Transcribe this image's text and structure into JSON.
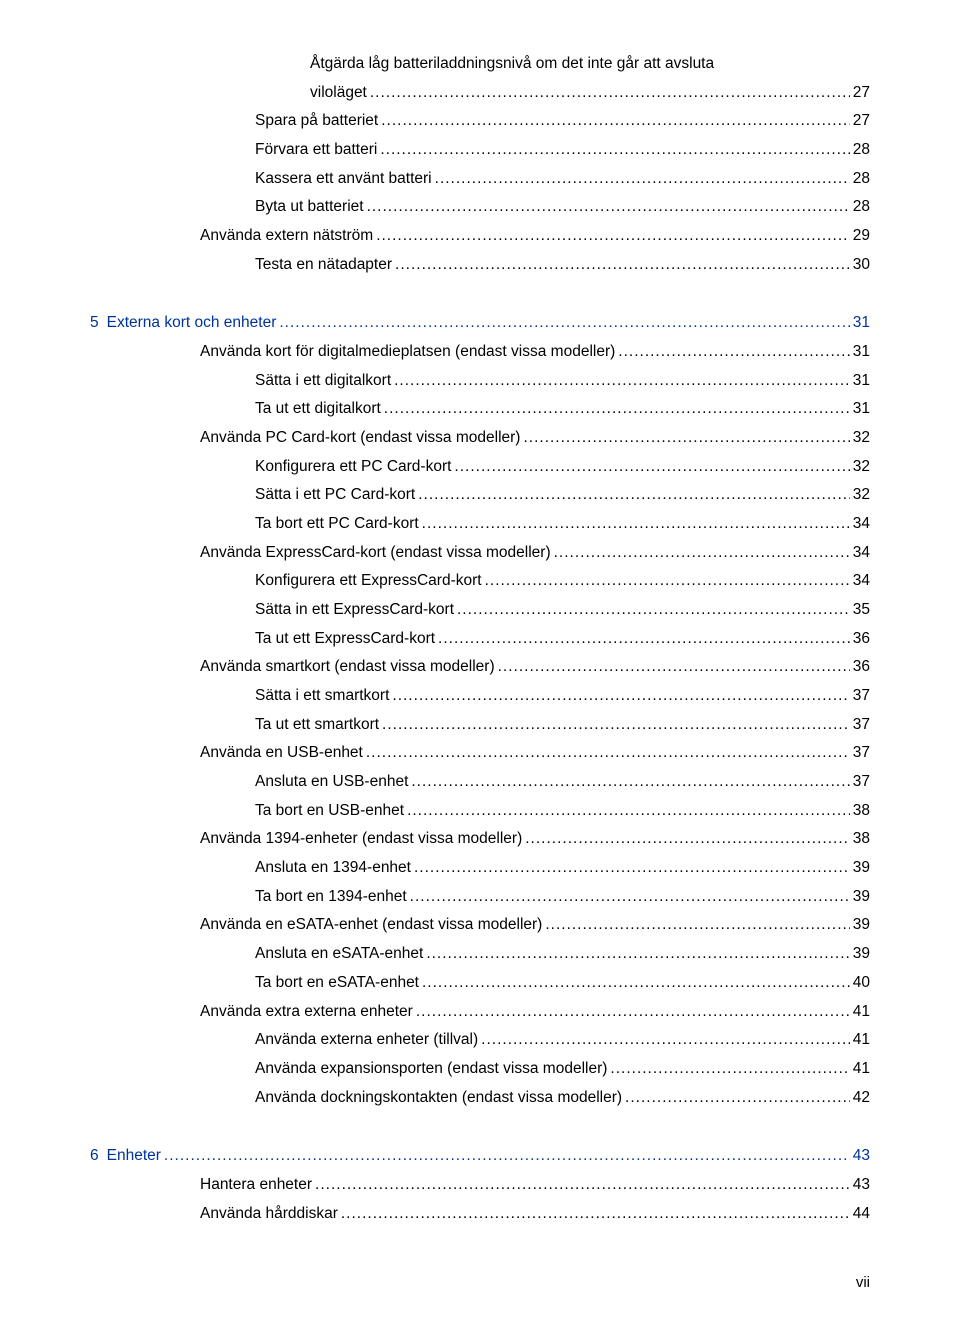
{
  "colors": {
    "text": "#000000",
    "accent": "#003399",
    "background": "#ffffff"
  },
  "page_number_label": "vii",
  "toc": [
    {
      "indent": 4,
      "title": "Åtgärda låg batteriladdningsnivå om det inte går att avsluta viloläget",
      "page": "27",
      "accent": false,
      "wrap": true
    },
    {
      "indent": 3,
      "title": "Spara på batteriet",
      "page": "27",
      "accent": false
    },
    {
      "indent": 3,
      "title": "Förvara ett batteri",
      "page": "28",
      "accent": false
    },
    {
      "indent": 3,
      "title": "Kassera ett använt batteri",
      "page": "28",
      "accent": false
    },
    {
      "indent": 3,
      "title": "Byta ut batteriet",
      "page": "28",
      "accent": false
    },
    {
      "indent": 2,
      "title": "Använda extern nätström",
      "page": "29",
      "accent": false
    },
    {
      "indent": 3,
      "title": "Testa en nätadapter",
      "page": "30",
      "accent": false
    },
    {
      "spacer": true
    },
    {
      "indent": 0,
      "chapter": "5",
      "title": "Externa kort och enheter",
      "page": "31",
      "accent": true
    },
    {
      "indent": 2,
      "title": "Använda kort för digitalmedieplatsen (endast vissa modeller)",
      "page": "31",
      "accent": false
    },
    {
      "indent": 3,
      "title": "Sätta i ett digitalkort",
      "page": "31",
      "accent": false
    },
    {
      "indent": 3,
      "title": "Ta ut ett digitalkort",
      "page": "31",
      "accent": false
    },
    {
      "indent": 2,
      "title": "Använda PC Card-kort (endast vissa modeller)",
      "page": "32",
      "accent": false
    },
    {
      "indent": 3,
      "title": "Konfigurera ett PC Card-kort",
      "page": "32",
      "accent": false
    },
    {
      "indent": 3,
      "title": "Sätta i ett PC Card-kort",
      "page": "32",
      "accent": false
    },
    {
      "indent": 3,
      "title": "Ta bort ett PC Card-kort",
      "page": "34",
      "accent": false
    },
    {
      "indent": 2,
      "title": "Använda ExpressCard-kort (endast vissa modeller)",
      "page": "34",
      "accent": false
    },
    {
      "indent": 3,
      "title": "Konfigurera ett ExpressCard-kort",
      "page": "34",
      "accent": false
    },
    {
      "indent": 3,
      "title": "Sätta in ett ExpressCard-kort",
      "page": "35",
      "accent": false
    },
    {
      "indent": 3,
      "title": "Ta ut ett ExpressCard-kort",
      "page": "36",
      "accent": false
    },
    {
      "indent": 2,
      "title": "Använda smartkort (endast vissa modeller)",
      "page": "36",
      "accent": false
    },
    {
      "indent": 3,
      "title": "Sätta i ett smartkort",
      "page": "37",
      "accent": false
    },
    {
      "indent": 3,
      "title": "Ta ut ett smartkort",
      "page": "37",
      "accent": false
    },
    {
      "indent": 2,
      "title": "Använda en USB-enhet",
      "page": "37",
      "accent": false
    },
    {
      "indent": 3,
      "title": "Ansluta en USB-enhet",
      "page": "37",
      "accent": false
    },
    {
      "indent": 3,
      "title": "Ta bort en USB-enhet",
      "page": "38",
      "accent": false
    },
    {
      "indent": 2,
      "title": "Använda 1394-enheter (endast vissa modeller)",
      "page": "38",
      "accent": false
    },
    {
      "indent": 3,
      "title": "Ansluta en 1394-enhet",
      "page": "39",
      "accent": false
    },
    {
      "indent": 3,
      "title": "Ta bort en 1394-enhet",
      "page": "39",
      "accent": false
    },
    {
      "indent": 2,
      "title": "Använda en eSATA-enhet (endast vissa modeller)",
      "page": "39",
      "accent": false
    },
    {
      "indent": 3,
      "title": "Ansluta en eSATA-enhet",
      "page": "39",
      "accent": false
    },
    {
      "indent": 3,
      "title": "Ta bort en eSATA-enhet",
      "page": "40",
      "accent": false
    },
    {
      "indent": 2,
      "title": "Använda extra externa enheter",
      "page": "41",
      "accent": false
    },
    {
      "indent": 3,
      "title": "Använda externa enheter (tillval)",
      "page": "41",
      "accent": false
    },
    {
      "indent": 3,
      "title": "Använda expansionsporten (endast vissa modeller)",
      "page": "41",
      "accent": false
    },
    {
      "indent": 3,
      "title": "Använda dockningskontakten (endast vissa modeller)",
      "page": "42",
      "accent": false
    },
    {
      "spacer": true
    },
    {
      "indent": 0,
      "chapter": "6",
      "title": "Enheter",
      "page": "43",
      "accent": true
    },
    {
      "indent": 2,
      "title": "Hantera enheter",
      "page": "43",
      "accent": false
    },
    {
      "indent": 2,
      "title": "Använda hårddiskar",
      "page": "44",
      "accent": false
    }
  ]
}
